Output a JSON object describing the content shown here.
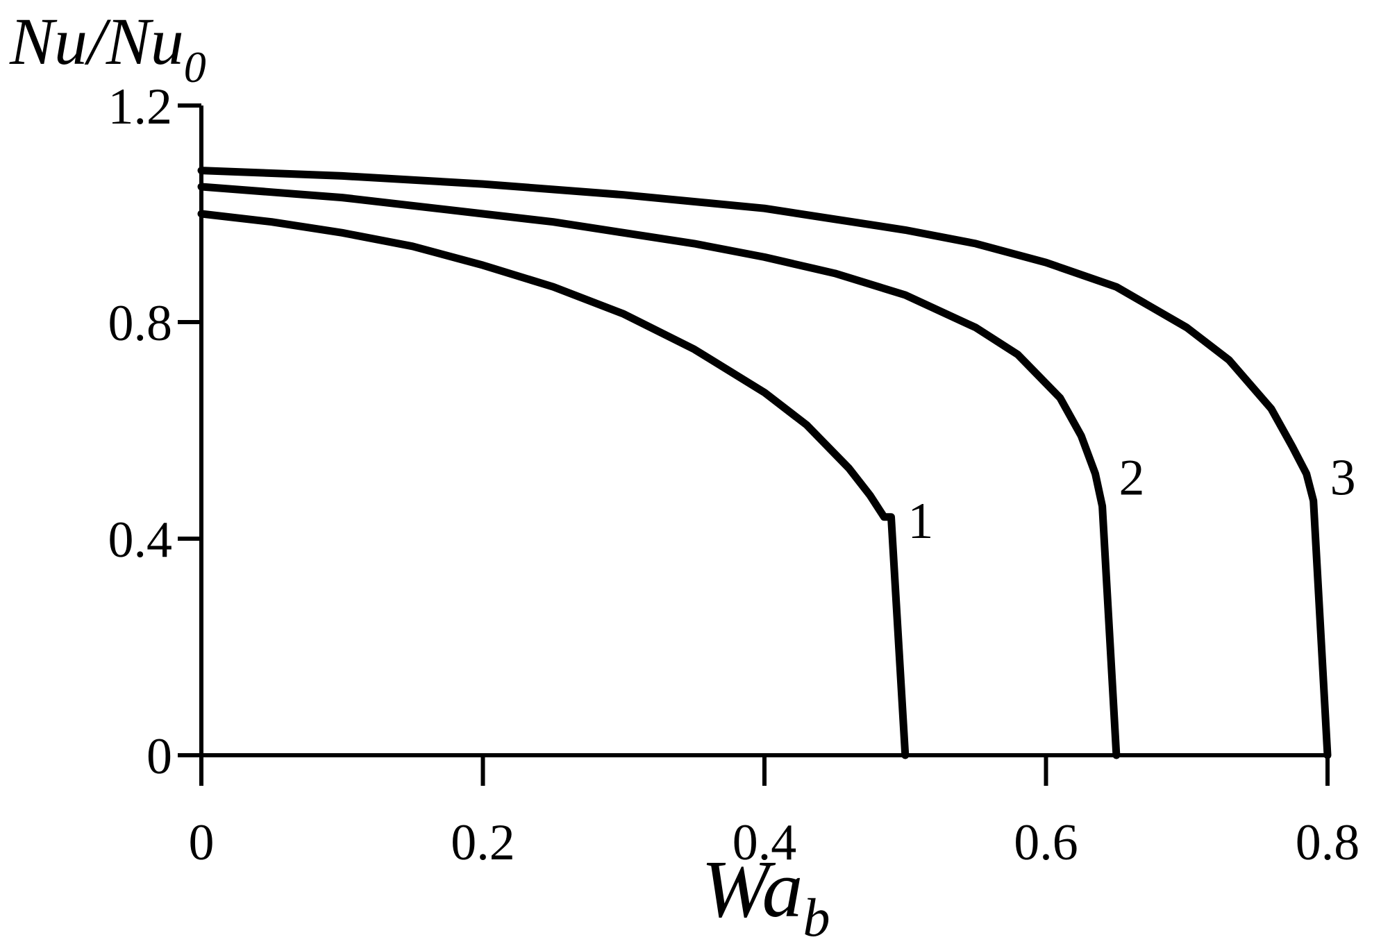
{
  "chart_data": {
    "type": "line",
    "title": "",
    "ylabel": {
      "main": "Nu/Nu",
      "sub": "0"
    },
    "xlabel": {
      "main": "Wa",
      "sub": "b"
    },
    "xlim": [
      0,
      0.8
    ],
    "ylim": [
      0,
      1.2
    ],
    "xticks": [
      "0",
      "0.2",
      "0.4",
      "0.6",
      "0.8"
    ],
    "yticks": [
      "0",
      "0.4",
      "0.8",
      "1.2"
    ],
    "grid": false,
    "legend": "none",
    "series": [
      {
        "label": "1",
        "x": [
          0,
          0.05,
          0.1,
          0.15,
          0.2,
          0.25,
          0.3,
          0.35,
          0.4,
          0.43,
          0.46,
          0.475,
          0.485,
          0.49,
          0.5
        ],
        "y": [
          1.0,
          0.985,
          0.965,
          0.94,
          0.905,
          0.865,
          0.815,
          0.75,
          0.67,
          0.61,
          0.53,
          0.48,
          0.44,
          0.44,
          0.0
        ]
      },
      {
        "label": "2",
        "x": [
          0,
          0.05,
          0.1,
          0.15,
          0.2,
          0.25,
          0.3,
          0.35,
          0.4,
          0.45,
          0.5,
          0.55,
          0.58,
          0.61,
          0.625,
          0.635,
          0.64,
          0.65
        ],
        "y": [
          1.05,
          1.04,
          1.03,
          1.015,
          1.0,
          0.985,
          0.965,
          0.945,
          0.92,
          0.89,
          0.85,
          0.79,
          0.74,
          0.66,
          0.59,
          0.52,
          0.46,
          0.0
        ]
      },
      {
        "label": "3",
        "x": [
          0,
          0.1,
          0.2,
          0.3,
          0.4,
          0.45,
          0.5,
          0.55,
          0.6,
          0.65,
          0.7,
          0.73,
          0.76,
          0.775,
          0.785,
          0.79,
          0.8
        ],
        "y": [
          1.08,
          1.07,
          1.055,
          1.035,
          1.01,
          0.99,
          0.97,
          0.945,
          0.91,
          0.865,
          0.79,
          0.73,
          0.64,
          0.57,
          0.52,
          0.47,
          0.0
        ]
      }
    ]
  }
}
